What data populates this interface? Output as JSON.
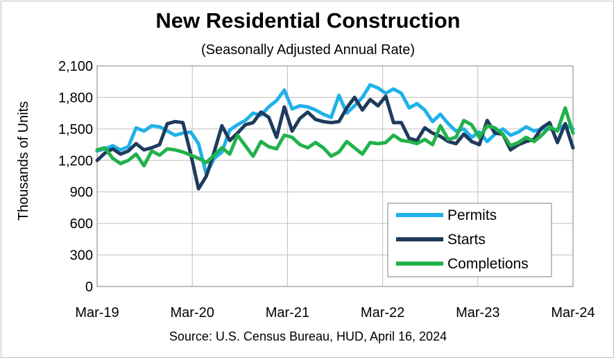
{
  "header": {
    "title": "New Residential Construction",
    "subtitle": "(Seasonally Adjusted Annual Rate)"
  },
  "footer": {
    "source": "Source:  U.S. Census Bureau, HUD, April 16, 2024"
  },
  "colors": {
    "permits": "#1fb1ea",
    "starts": "#1f3b5c",
    "completions": "#21b24b",
    "grid": "#bfbfbf",
    "axis": "#7f7f7f"
  },
  "chart_data": {
    "type": "line",
    "ylabel": "Thousands of Units",
    "ylim": [
      0,
      2100
    ],
    "yticks": [
      0,
      300,
      600,
      900,
      1200,
      1500,
      1800,
      2100
    ],
    "ytick_labels": [
      "0",
      "300",
      "600",
      "900",
      "1,200",
      "1,500",
      "1,800",
      "2,100"
    ],
    "x_start": "Mar-19",
    "x_end": "Mar-24",
    "xtick_labels": [
      "Mar-19",
      "Mar-20",
      "Mar-21",
      "Mar-22",
      "Mar-23",
      "Mar-24"
    ],
    "grid": true,
    "legend_position": "bottom-right",
    "series": [
      {
        "name": "Permits",
        "color": "#1fb1ea",
        "values": [
          1290,
          1310,
          1340,
          1300,
          1330,
          1510,
          1480,
          1530,
          1520,
          1480,
          1440,
          1460,
          1470,
          1360,
          1070,
          1220,
          1280,
          1490,
          1540,
          1580,
          1650,
          1630,
          1710,
          1770,
          1870,
          1690,
          1720,
          1710,
          1680,
          1640,
          1610,
          1820,
          1650,
          1720,
          1800,
          1920,
          1890,
          1840,
          1880,
          1840,
          1700,
          1740,
          1680,
          1570,
          1640,
          1550,
          1480,
          1500,
          1420,
          1470,
          1380,
          1450,
          1500,
          1440,
          1470,
          1520,
          1480,
          1500,
          1500,
          1490,
          1540,
          1500
        ]
      },
      {
        "name": "Starts",
        "color": "#1f3b5c",
        "values": [
          1200,
          1270,
          1310,
          1260,
          1290,
          1360,
          1300,
          1320,
          1350,
          1550,
          1570,
          1560,
          1260,
          930,
          1050,
          1280,
          1530,
          1390,
          1460,
          1540,
          1560,
          1660,
          1610,
          1420,
          1710,
          1480,
          1600,
          1660,
          1590,
          1570,
          1560,
          1570,
          1700,
          1800,
          1680,
          1780,
          1720,
          1810,
          1560,
          1560,
          1410,
          1390,
          1510,
          1460,
          1430,
          1380,
          1360,
          1450,
          1380,
          1350,
          1580,
          1460,
          1450,
          1300,
          1350,
          1380,
          1400,
          1510,
          1560,
          1370,
          1550,
          1320
        ]
      },
      {
        "name": "Completions",
        "color": "#21b24b",
        "values": [
          1300,
          1320,
          1220,
          1170,
          1200,
          1260,
          1150,
          1290,
          1250,
          1310,
          1300,
          1280,
          1250,
          1220,
          1180,
          1250,
          1320,
          1260,
          1440,
          1340,
          1240,
          1380,
          1330,
          1310,
          1440,
          1420,
          1350,
          1320,
          1370,
          1320,
          1240,
          1280,
          1380,
          1320,
          1260,
          1370,
          1360,
          1370,
          1440,
          1390,
          1380,
          1360,
          1400,
          1350,
          1530,
          1400,
          1420,
          1580,
          1540,
          1420,
          1530,
          1510,
          1450,
          1340,
          1370,
          1420,
          1380,
          1440,
          1520,
          1480,
          1700,
          1460
        ]
      }
    ]
  }
}
